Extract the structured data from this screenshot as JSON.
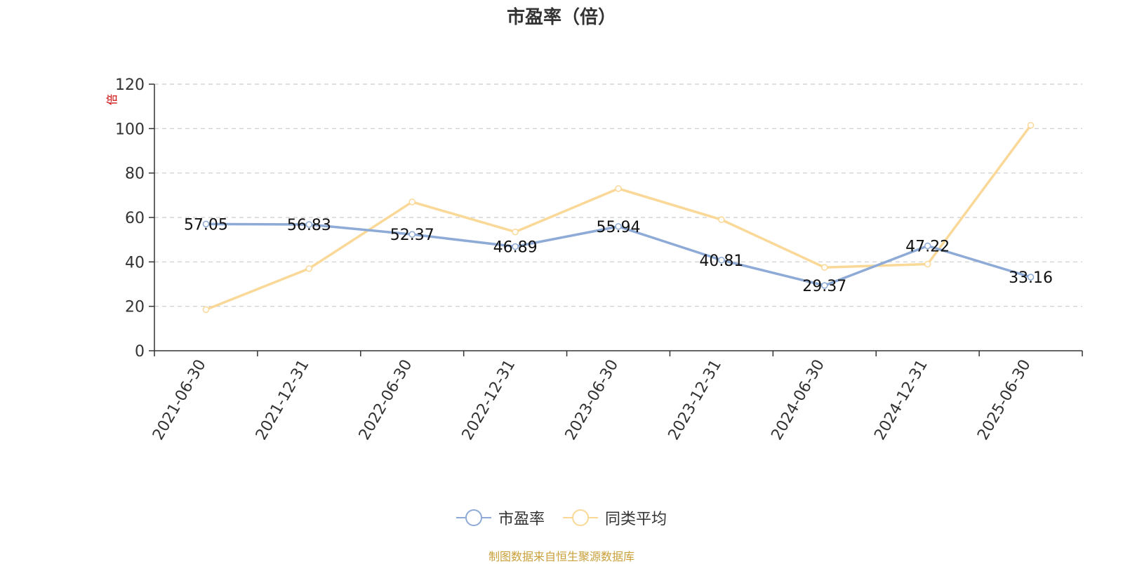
{
  "chart_data": {
    "type": "line",
    "title": "市盈率（倍）",
    "unit_label": "倍",
    "categories": [
      "2021-06-30",
      "2021-12-31",
      "2022-06-30",
      "2022-12-31",
      "2023-06-30",
      "2023-12-31",
      "2024-06-30",
      "2024-12-31",
      "2025-06-30"
    ],
    "series": [
      {
        "name": "市盈率",
        "color": "#8eaad6",
        "values": [
          57.05,
          56.83,
          52.37,
          46.89,
          55.94,
          40.81,
          29.37,
          47.22,
          33.16
        ],
        "labels": [
          "57.05",
          "56.83",
          "52.37",
          "46.89",
          "55.94",
          "40.81",
          "29.37",
          "47.22",
          "33.16"
        ]
      },
      {
        "name": "同类平均",
        "color": "#f9d898",
        "values": [
          18.5,
          37,
          67,
          53.5,
          73,
          59,
          37.5,
          39,
          101.5
        ]
      }
    ],
    "ylim": [
      0,
      120
    ],
    "yticks": [
      0,
      20,
      40,
      60,
      80,
      100,
      120
    ],
    "grid": true,
    "legend_position": "bottom"
  },
  "source_text": "制图数据来自恒生聚源数据库"
}
